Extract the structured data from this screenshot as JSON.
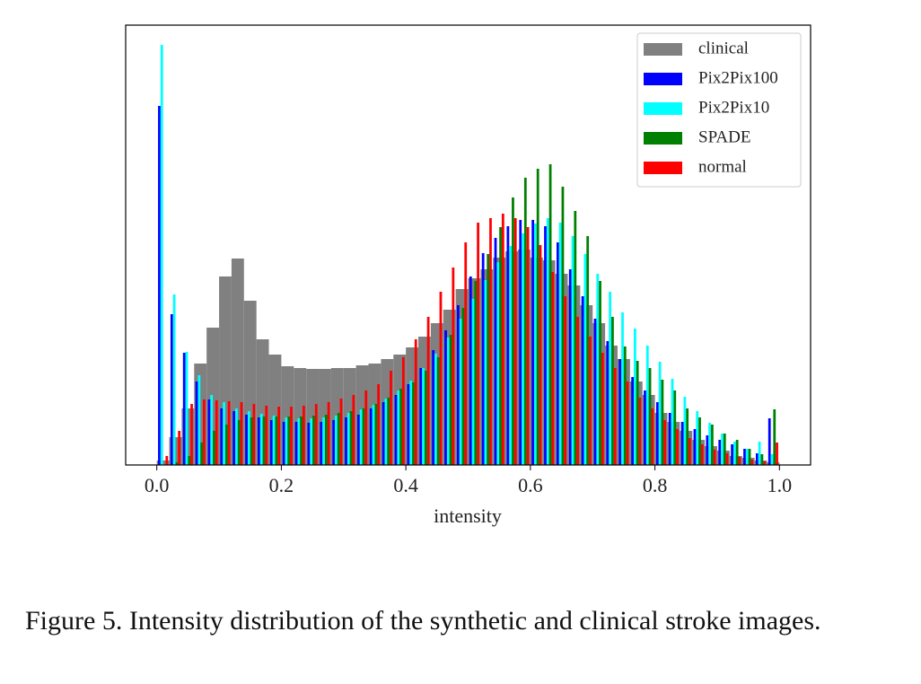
{
  "chart_data": {
    "type": "histogram",
    "xlabel": "intensity",
    "xlim": [
      -0.05,
      1.05
    ],
    "ylim": [
      0,
      49
    ],
    "xticks": [
      {
        "value": 0,
        "label": "0.0"
      },
      0.2,
      0.4,
      0.6,
      0.8,
      {
        "value": 1,
        "label": "1.0"
      }
    ],
    "legend": "upper right",
    "bins": [
      0,
      0.02,
      0.04,
      0.06,
      0.08,
      0.1,
      0.12,
      0.14,
      0.16,
      0.18,
      0.2,
      0.22,
      0.24,
      0.26,
      0.28,
      0.3,
      0.32,
      0.34,
      0.36,
      0.38,
      0.4,
      0.42,
      0.44,
      0.46,
      0.48,
      0.5,
      0.52,
      0.54,
      0.56,
      0.58,
      0.6,
      0.62,
      0.64,
      0.66,
      0.68,
      0.7,
      0.72,
      0.74,
      0.76,
      0.78,
      0.8,
      0.82,
      0.84,
      0.86,
      0.88,
      0.9,
      0.92,
      0.94,
      0.96,
      0.98,
      1
    ],
    "series": [
      {
        "name": "clinical",
        "color": "#808080",
        "values": [
          0.5,
          3.1,
          6.3,
          11.3,
          15.3,
          21,
          23,
          18.3,
          14,
          12.3,
          11,
          10.8,
          10.7,
          10.7,
          10.8,
          10.8,
          11.1,
          11.3,
          11.8,
          12.3,
          13.1,
          14.3,
          15.8,
          17.3,
          19.6,
          20.8,
          21.8,
          23.1,
          23.8,
          24,
          23.1,
          22.8,
          21.3,
          20,
          17.8,
          15.8,
          13.3,
          11.8,
          9.3,
          7.8,
          5.8,
          4.8,
          3.8,
          2.8,
          2.1,
          1.6,
          1,
          0.8,
          0.5,
          0.3
        ]
      },
      {
        "name": "Pix2Pix100",
        "color": "#0000ff",
        "values": [
          40,
          16.8,
          12.5,
          9.3,
          7.3,
          6.3,
          6,
          5.6,
          5.3,
          5,
          4.8,
          4.8,
          4.7,
          4.8,
          5,
          5.3,
          5.6,
          6.3,
          7,
          7.8,
          9,
          10.8,
          12.8,
          15,
          17.8,
          21,
          23.6,
          25.3,
          26.6,
          27.3,
          27.3,
          26.6,
          24.8,
          21.8,
          18.8,
          16.3,
          13.8,
          11.8,
          9.8,
          8.3,
          7,
          5.8,
          4.8,
          4,
          3.3,
          2.8,
          2.3,
          1.8,
          1.3,
          5.2
        ]
      },
      {
        "name": "Pix2Pix10",
        "color": "#00ffff",
        "values": [
          46.8,
          19,
          12.6,
          10,
          7.8,
          7,
          6.3,
          6,
          5.7,
          5.5,
          5.3,
          5.2,
          5.2,
          5.3,
          5.5,
          5.8,
          6.2,
          6.7,
          7.4,
          8.3,
          9.4,
          10.8,
          12.4,
          14.2,
          16.3,
          18.5,
          20.6,
          22.6,
          24.4,
          25.8,
          26.9,
          27.5,
          27,
          25.5,
          23.5,
          21.3,
          19.3,
          17,
          15.2,
          13.3,
          11.5,
          9.6,
          7.6,
          6,
          4.7,
          3.5,
          2.6,
          1.8,
          2.6,
          1.2
        ]
      },
      {
        "name": "SPADE",
        "color": "#008000",
        "values": [
          0,
          0.3,
          1,
          2.5,
          3.8,
          4.5,
          5,
          5.3,
          5.4,
          5.4,
          5.4,
          5.4,
          5.5,
          5.6,
          5.8,
          6,
          6.3,
          6.8,
          7.5,
          8.5,
          9.2,
          10.5,
          12,
          14.5,
          17.5,
          20.5,
          23.5,
          26.5,
          29.8,
          32,
          33,
          33.5,
          31,
          28.3,
          25.5,
          20.5,
          16.5,
          13.2,
          11.6,
          10.8,
          9.5,
          8.3,
          6.3,
          5.3,
          4.5,
          3.5,
          2.8,
          1.8,
          1.2,
          6.2
        ]
      },
      {
        "name": "normal",
        "color": "#ff0000",
        "values": [
          1,
          3.8,
          6.8,
          7.3,
          7.2,
          7.1,
          7,
          6.8,
          6.6,
          6.5,
          6.5,
          6.6,
          6.8,
          7,
          7.4,
          7.8,
          8.3,
          9,
          10.5,
          12,
          14,
          16.5,
          19.3,
          22,
          24.8,
          27,
          27.5,
          28,
          27.5,
          26.5,
          24.5,
          21.5,
          18.8,
          16.5,
          14.3,
          12.5,
          10.8,
          9.3,
          7.5,
          6.3,
          5,
          4,
          3,
          2.3,
          1.7,
          1.3,
          0.9,
          0.6,
          0.4,
          2.5
        ]
      }
    ]
  },
  "caption": "Figure 5.  Intensity distribution of the synthetic and clinical stroke images."
}
